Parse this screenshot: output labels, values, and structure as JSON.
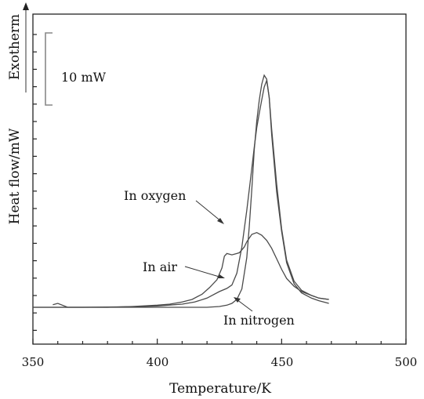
{
  "chart_data": {
    "type": "line",
    "xlabel": "Temperature/K",
    "ylabel": "Heat flow/mW",
    "xlim": [
      350,
      500
    ],
    "xticks": [
      "350",
      "400",
      "450",
      "500"
    ],
    "ylim": [
      0,
      100
    ],
    "exotherm_label": "Exotherm",
    "scale_bar_label": "10 mW",
    "series": [
      {
        "name": "In oxygen",
        "x": [
          358,
          360,
          364,
          370,
          380,
          390,
          400,
          405,
          410,
          414,
          418,
          421,
          424,
          426,
          427,
          428,
          430,
          432,
          433,
          435,
          436,
          438,
          440,
          442,
          444,
          446,
          448,
          450,
          452,
          455,
          458,
          462,
          465,
          469
        ],
        "y": [
          1,
          1.5,
          0,
          0,
          0,
          0.3,
          0.8,
          1.2,
          2,
          3,
          5,
          7.5,
          10.5,
          15,
          19.5,
          20.5,
          20,
          20.5,
          20.8,
          23,
          25,
          27.8,
          28.5,
          27.5,
          25.5,
          22.5,
          18.5,
          14.5,
          11,
          8,
          6,
          4.5,
          3.5,
          3
        ]
      },
      {
        "name": "In air",
        "x": [
          350,
          370,
          390,
          400,
          410,
          415,
          420,
          425,
          428,
          430,
          432,
          434,
          436,
          438,
          439,
          440,
          441,
          442,
          443,
          444,
          445,
          446,
          448,
          450,
          452,
          455,
          458,
          462,
          465,
          469
        ],
        "y": [
          0,
          0,
          0.2,
          0.5,
          1.2,
          2,
          3.5,
          6,
          7.2,
          8.5,
          13,
          23,
          37,
          53,
          61,
          68.5,
          74,
          79,
          84,
          86.5,
          80,
          68,
          47,
          30,
          18,
          10,
          6.5,
          4.5,
          3.5,
          3
        ]
      },
      {
        "name": "In nitrogen",
        "x": [
          350,
          380,
          400,
          420,
          425,
          428,
          430,
          432,
          434,
          436,
          437,
          438,
          439,
          440,
          441,
          442,
          443,
          444,
          445,
          446,
          448,
          450,
          452,
          455,
          458,
          462,
          465,
          469
        ],
        "y": [
          0,
          0,
          0,
          0,
          0.3,
          0.8,
          1.5,
          3,
          7,
          19,
          31,
          45,
          60,
          71,
          79,
          85,
          88.5,
          87,
          80,
          66,
          44,
          29,
          17,
          9,
          5.5,
          3.5,
          2.5,
          1.5
        ]
      }
    ]
  }
}
